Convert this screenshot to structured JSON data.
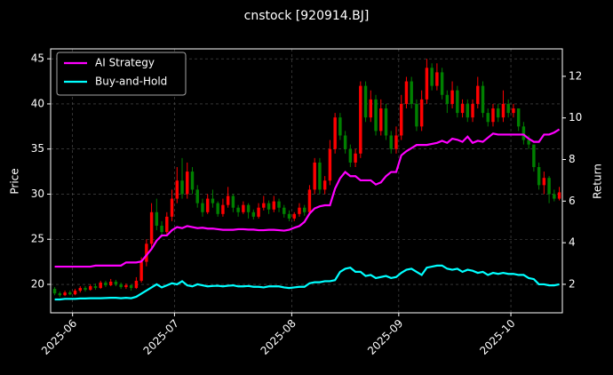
{
  "chart_data": {
    "type": "candlestick",
    "title": "cnstock [920914.BJ]",
    "ylabel": "Price",
    "y2label": "Return",
    "categories": [
      null,
      null,
      null,
      null,
      null,
      null,
      null,
      null,
      null,
      null,
      null,
      null,
      null,
      null,
      null,
      null,
      null,
      null,
      null,
      null,
      null,
      null,
      null,
      null,
      null,
      null,
      null,
      null,
      null,
      null,
      null,
      null,
      null,
      null,
      null,
      null,
      null,
      null,
      null,
      null,
      null,
      null,
      null,
      null,
      null,
      null,
      null,
      null,
      null,
      null,
      null,
      null,
      null,
      null,
      null,
      null,
      null,
      null,
      null,
      null,
      null,
      null,
      null,
      null,
      null,
      null,
      null,
      null,
      null,
      null,
      null,
      null,
      null,
      null,
      null,
      null,
      null,
      null,
      null,
      null,
      null,
      null,
      null,
      null,
      null,
      null,
      null,
      null,
      null,
      null,
      null,
      null,
      null,
      null,
      null,
      null,
      null,
      null,
      null,
      null
    ],
    "xlim": [
      -0.8,
      99.6
    ],
    "xticks": [
      {
        "value": 3.5,
        "label": "2025-06"
      },
      {
        "value": 23.5,
        "label": "2025-07"
      },
      {
        "value": 46.5,
        "label": "2025-08"
      },
      {
        "value": 67.5,
        "label": "2025-09"
      },
      {
        "value": 89.5,
        "label": "2025-10"
      }
    ],
    "ylim": [
      16.85,
      46.1
    ],
    "yticks": [
      20,
      25,
      30,
      35,
      40,
      45
    ],
    "y2lim": [
      0.63,
      13.32
    ],
    "y2ticks": [
      2,
      4,
      6,
      8,
      10,
      12
    ],
    "grid": true,
    "legend": "upper left",
    "up_color": "#ff0000",
    "down_color": "#008000",
    "open": [
      19.5,
      19.0,
      18.8,
      19.1,
      18.9,
      19.3,
      19.6,
      19.4,
      19.8,
      19.6,
      20.2,
      19.9,
      20.3,
      20.0,
      19.7,
      19.9,
      19.6,
      20.4,
      22.5,
      24.5,
      28.0,
      26.5,
      25.8,
      27.5,
      29.5,
      31.5,
      30.0,
      32.5,
      30.5,
      29.0,
      28.0,
      29.5,
      29.0,
      27.8,
      28.8,
      29.8,
      28.5,
      28.0,
      28.8,
      28.0,
      27.5,
      28.5,
      29.0,
      28.3,
      29.2,
      28.5,
      27.8,
      27.3,
      27.8,
      28.5,
      28.0,
      30.5,
      33.5,
      30.5,
      31.5,
      35.0,
      38.5,
      36.5,
      35.0,
      33.5,
      34.5,
      42.0,
      38.5,
      40.5,
      37.0,
      39.5,
      36.5,
      35.0,
      36.5,
      40.0,
      42.5,
      40.0,
      37.5,
      40.5,
      44.0,
      42.0,
      43.5,
      41.0,
      40.0,
      41.5,
      39.0,
      40.0,
      38.5,
      40.0,
      42.0,
      39.0,
      38.0,
      39.5,
      38.5,
      40.0,
      39.0,
      39.5,
      37.5,
      36.0,
      35.5,
      33.0,
      31.0,
      31.8,
      30.0,
      29.5
    ],
    "close": [
      19.0,
      18.8,
      19.1,
      18.9,
      19.3,
      19.6,
      19.4,
      19.8,
      19.6,
      20.2,
      19.9,
      20.3,
      20.0,
      19.7,
      19.9,
      19.6,
      20.4,
      22.5,
      24.5,
      28.0,
      26.5,
      25.8,
      27.5,
      29.5,
      31.5,
      30.0,
      32.5,
      30.5,
      29.0,
      28.0,
      29.5,
      29.0,
      27.8,
      28.8,
      29.8,
      28.5,
      28.0,
      28.8,
      28.0,
      27.5,
      28.5,
      29.0,
      28.3,
      29.2,
      28.5,
      27.8,
      27.3,
      27.8,
      28.5,
      28.0,
      30.5,
      33.5,
      30.5,
      31.5,
      35.0,
      38.5,
      36.5,
      35.0,
      33.5,
      34.5,
      42.0,
      38.5,
      40.5,
      37.0,
      39.5,
      36.5,
      35.0,
      36.5,
      40.0,
      42.5,
      40.0,
      37.5,
      40.5,
      44.0,
      42.0,
      43.5,
      41.0,
      40.0,
      41.5,
      39.0,
      40.0,
      38.5,
      40.0,
      42.0,
      39.0,
      38.0,
      39.5,
      38.5,
      40.0,
      39.0,
      39.5,
      37.5,
      36.0,
      35.5,
      33.0,
      31.0,
      31.8,
      30.0,
      29.5,
      30.2
    ],
    "high": [
      19.7,
      19.2,
      19.3,
      19.3,
      19.5,
      19.8,
      19.8,
      20.0,
      20.1,
      20.4,
      20.4,
      20.6,
      20.5,
      20.2,
      20.1,
      20.0,
      20.8,
      23.0,
      25.0,
      29.0,
      29.5,
      27.0,
      28.0,
      30.5,
      33.0,
      34.0,
      33.5,
      33.0,
      31.0,
      29.5,
      30.0,
      30.5,
      29.2,
      29.5,
      30.8,
      30.0,
      28.8,
      29.2,
      29.0,
      28.3,
      29.0,
      29.8,
      29.3,
      29.8,
      29.5,
      28.8,
      28.2,
      28.0,
      29.0,
      28.8,
      31.0,
      34.0,
      34.0,
      32.0,
      36.0,
      39.0,
      39.0,
      37.0,
      35.5,
      35.0,
      42.5,
      42.5,
      41.5,
      41.0,
      40.5,
      40.0,
      37.0,
      37.5,
      41.0,
      43.0,
      43.0,
      40.5,
      41.5,
      45.0,
      44.5,
      44.5,
      44.0,
      41.5,
      42.5,
      42.0,
      40.5,
      40.5,
      40.5,
      43.0,
      42.5,
      39.5,
      40.0,
      40.0,
      41.5,
      40.5,
      40.0,
      39.5,
      38.0,
      36.5,
      35.5,
      33.5,
      32.5,
      32.0,
      30.5,
      30.8
    ],
    "low": [
      18.8,
      18.6,
      18.7,
      18.8,
      18.8,
      19.1,
      19.2,
      19.3,
      19.4,
      19.5,
      19.7,
      19.8,
      19.8,
      19.5,
      19.5,
      19.3,
      19.5,
      20.2,
      22.0,
      24.0,
      26.0,
      25.2,
      25.5,
      27.0,
      29.0,
      29.5,
      29.5,
      30.0,
      28.5,
      27.5,
      27.8,
      28.5,
      27.5,
      27.5,
      28.5,
      28.0,
      27.5,
      27.8,
      27.3,
      27.2,
      27.3,
      28.2,
      27.8,
      28.0,
      28.0,
      27.4,
      27.0,
      27.0,
      27.5,
      27.6,
      27.8,
      30.0,
      30.0,
      30.0,
      31.0,
      34.5,
      36.0,
      34.5,
      33.0,
      33.0,
      34.0,
      38.0,
      38.0,
      36.5,
      36.5,
      36.0,
      34.5,
      34.5,
      36.0,
      39.5,
      39.5,
      37.0,
      37.0,
      40.0,
      41.5,
      41.5,
      40.5,
      39.0,
      39.5,
      38.5,
      38.5,
      38.0,
      38.0,
      39.5,
      38.5,
      37.5,
      37.5,
      38.0,
      38.0,
      38.5,
      38.5,
      37.0,
      35.5,
      35.0,
      32.5,
      30.5,
      30.0,
      29.0,
      29.2,
      29.3
    ],
    "series": [
      {
        "name": "AI Strategy",
        "color": "#ff00ff",
        "axis": "y2",
        "values": [
          2.85,
          2.85,
          2.85,
          2.85,
          2.85,
          2.85,
          2.85,
          2.85,
          2.9,
          2.9,
          2.9,
          2.9,
          2.9,
          2.9,
          3.05,
          3.05,
          3.05,
          3.1,
          3.4,
          3.7,
          4.1,
          4.35,
          4.35,
          4.6,
          4.75,
          4.7,
          4.8,
          4.75,
          4.7,
          4.72,
          4.68,
          4.68,
          4.65,
          4.62,
          4.62,
          4.62,
          4.65,
          4.65,
          4.63,
          4.63,
          4.6,
          4.6,
          4.62,
          4.62,
          4.6,
          4.58,
          4.62,
          4.72,
          4.8,
          5.0,
          5.4,
          5.65,
          5.75,
          5.8,
          5.8,
          6.6,
          7.1,
          7.4,
          7.2,
          7.2,
          7.0,
          7.0,
          7.0,
          6.8,
          6.9,
          7.2,
          7.4,
          7.4,
          8.2,
          8.4,
          8.55,
          8.7,
          8.7,
          8.7,
          8.75,
          8.8,
          8.9,
          8.8,
          9.0,
          8.95,
          8.85,
          9.1,
          8.8,
          8.9,
          8.85,
          9.05,
          9.25,
          9.2,
          9.2,
          9.2,
          9.2,
          9.2,
          9.2,
          9.0,
          8.85,
          8.85,
          9.2,
          9.2,
          9.3,
          9.45
        ]
      },
      {
        "name": "Buy-and-Hold",
        "color": "#00ffff",
        "axis": "y2",
        "values": [
          1.27,
          1.27,
          1.3,
          1.3,
          1.3,
          1.32,
          1.32,
          1.33,
          1.33,
          1.33,
          1.34,
          1.35,
          1.35,
          1.33,
          1.35,
          1.33,
          1.4,
          1.55,
          1.7,
          1.85,
          2.0,
          1.85,
          1.95,
          2.05,
          2.0,
          2.15,
          1.95,
          1.9,
          2.0,
          1.95,
          1.9,
          1.92,
          1.93,
          1.9,
          1.93,
          1.95,
          1.9,
          1.9,
          1.92,
          1.88,
          1.88,
          1.85,
          1.9,
          1.9,
          1.9,
          1.85,
          1.82,
          1.85,
          1.88,
          1.88,
          2.05,
          2.1,
          2.1,
          2.15,
          2.15,
          2.2,
          2.6,
          2.75,
          2.8,
          2.6,
          2.6,
          2.4,
          2.45,
          2.3,
          2.35,
          2.4,
          2.3,
          2.35,
          2.55,
          2.7,
          2.75,
          2.6,
          2.45,
          2.8,
          2.85,
          2.9,
          2.9,
          2.75,
          2.7,
          2.75,
          2.6,
          2.7,
          2.65,
          2.55,
          2.6,
          2.45,
          2.55,
          2.5,
          2.55,
          2.5,
          2.5,
          2.45,
          2.45,
          2.3,
          2.25,
          2.0,
          2.0,
          1.95,
          1.95,
          2.0
        ]
      }
    ]
  }
}
